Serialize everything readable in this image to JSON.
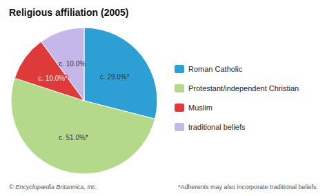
{
  "chart_data": {
    "type": "pie",
    "title": "Religious affiliation (2005)",
    "categories": [
      "Roman Catholic",
      "Protestant/independent Christian",
      "Muslim",
      "traditional beliefs"
    ],
    "values": [
      29.0,
      51.0,
      10.0,
      10.0
    ],
    "value_labels": [
      "c. 29.0%*",
      "c. 51.0%*",
      "c. 10.0%*",
      "c. 10.0%"
    ],
    "colors": [
      "#2e9fd4",
      "#b5d98b",
      "#df3a3a",
      "#c5b8e8"
    ],
    "data_labels": true,
    "legend": "right",
    "annotations": [
      "© Encyclopædia Britannica, Inc.",
      "*Adherents may also incorporate traditional beliefs."
    ]
  }
}
